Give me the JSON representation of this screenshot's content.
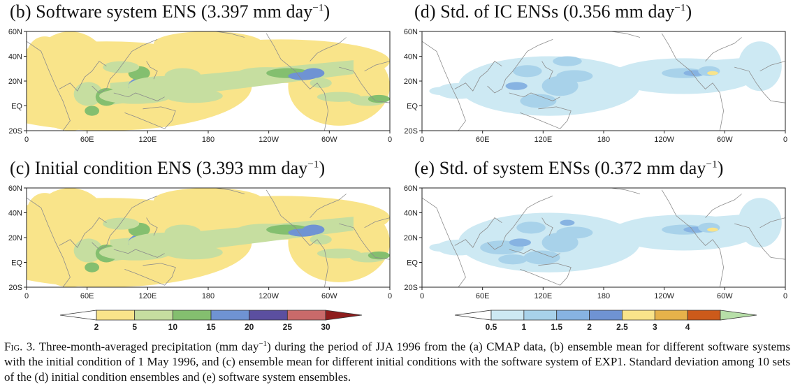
{
  "panels": [
    {
      "id": "b",
      "title_main": "(b) Software system ENS (3.397 mm day",
      "title_exp": "−1",
      "title_end": ")",
      "colormap": "precip",
      "blobs": [
        [
          0.03,
          0.7,
          0.07,
          0.06,
          1
        ],
        [
          0.1,
          0.62,
          0.05,
          0.28,
          1
        ],
        [
          0.16,
          0.58,
          0.06,
          0.22,
          1
        ],
        [
          0.17,
          0.63,
          0.04,
          0.12,
          2
        ],
        [
          0.22,
          0.66,
          0.03,
          0.09,
          3
        ],
        [
          0.18,
          0.8,
          0.02,
          0.05,
          3
        ],
        [
          0.32,
          0.55,
          0.04,
          0.09,
          4
        ],
        [
          0.33,
          0.58,
          0.02,
          0.04,
          5
        ],
        [
          0.31,
          0.42,
          0.03,
          0.07,
          3
        ],
        [
          0.26,
          0.36,
          0.05,
          0.06,
          2
        ],
        [
          0.38,
          0.55,
          0.1,
          0.1,
          2
        ],
        [
          0.43,
          0.45,
          0.05,
          0.08,
          2
        ],
        [
          0.3,
          0.65,
          0.1,
          0.08,
          2
        ],
        [
          0.46,
          0.65,
          0.08,
          0.07,
          2
        ],
        [
          0.22,
          0.25,
          0.04,
          0.05,
          1
        ],
        [
          0.66,
          0.42,
          0.08,
          0.06,
          2
        ],
        [
          0.72,
          0.42,
          0.06,
          0.05,
          3
        ],
        [
          0.76,
          0.45,
          0.04,
          0.04,
          4
        ],
        [
          0.79,
          0.42,
          0.03,
          0.05,
          4
        ],
        [
          0.81,
          0.52,
          0.03,
          0.05,
          2
        ],
        [
          0.86,
          0.66,
          0.06,
          0.05,
          2
        ],
        [
          0.94,
          0.7,
          0.05,
          0.05,
          2
        ],
        [
          0.97,
          0.68,
          0.03,
          0.04,
          3
        ]
      ],
      "band": [
        0.23,
        0.62,
        0.9,
        0.35
      ]
    },
    {
      "id": "d",
      "title_main": "(d) Std. of IC ENSs (0.356 mm day",
      "title_exp": "−1",
      "title_end": ")",
      "colormap": "std",
      "blobs": [
        [
          0.05,
          0.6,
          0.03,
          0.04,
          1
        ],
        [
          0.14,
          0.55,
          0.04,
          0.05,
          1
        ],
        [
          0.22,
          0.6,
          0.05,
          0.06,
          1
        ],
        [
          0.25,
          0.72,
          0.04,
          0.05,
          1
        ],
        [
          0.26,
          0.55,
          0.03,
          0.04,
          3
        ],
        [
          0.29,
          0.4,
          0.04,
          0.06,
          2
        ],
        [
          0.32,
          0.7,
          0.05,
          0.07,
          2
        ],
        [
          0.38,
          0.55,
          0.05,
          0.1,
          2
        ],
        [
          0.42,
          0.45,
          0.05,
          0.06,
          2
        ],
        [
          0.48,
          0.55,
          0.04,
          0.05,
          1
        ],
        [
          0.4,
          0.3,
          0.04,
          0.05,
          2
        ],
        [
          0.72,
          0.42,
          0.06,
          0.05,
          2
        ],
        [
          0.75,
          0.42,
          0.03,
          0.03,
          3
        ],
        [
          0.79,
          0.4,
          0.03,
          0.05,
          2
        ],
        [
          0.8,
          0.42,
          0.015,
          0.02,
          5
        ],
        [
          0.93,
          0.52,
          0.03,
          0.04,
          1
        ]
      ],
      "band": [
        0.22,
        0.55,
        0.98,
        0.3
      ]
    },
    {
      "id": "c",
      "title_main": "(c) Initial condition ENS (3.393 mm day",
      "title_exp": "−1",
      "title_end": ")",
      "colormap": "precip",
      "blobs": [
        [
          0.03,
          0.7,
          0.07,
          0.06,
          1
        ],
        [
          0.1,
          0.62,
          0.05,
          0.28,
          1
        ],
        [
          0.16,
          0.58,
          0.06,
          0.22,
          1
        ],
        [
          0.17,
          0.63,
          0.04,
          0.12,
          2
        ],
        [
          0.22,
          0.66,
          0.03,
          0.09,
          3
        ],
        [
          0.18,
          0.8,
          0.02,
          0.05,
          3
        ],
        [
          0.32,
          0.55,
          0.04,
          0.09,
          4
        ],
        [
          0.33,
          0.58,
          0.02,
          0.04,
          5
        ],
        [
          0.31,
          0.42,
          0.03,
          0.07,
          3
        ],
        [
          0.26,
          0.36,
          0.05,
          0.06,
          2
        ],
        [
          0.38,
          0.55,
          0.1,
          0.1,
          2
        ],
        [
          0.43,
          0.45,
          0.05,
          0.08,
          2
        ],
        [
          0.3,
          0.65,
          0.1,
          0.08,
          2
        ],
        [
          0.46,
          0.65,
          0.08,
          0.07,
          2
        ],
        [
          0.22,
          0.25,
          0.04,
          0.05,
          1
        ],
        [
          0.66,
          0.42,
          0.08,
          0.06,
          2
        ],
        [
          0.72,
          0.42,
          0.06,
          0.05,
          3
        ],
        [
          0.76,
          0.45,
          0.04,
          0.04,
          4
        ],
        [
          0.79,
          0.42,
          0.03,
          0.05,
          4
        ],
        [
          0.81,
          0.52,
          0.03,
          0.05,
          2
        ],
        [
          0.86,
          0.66,
          0.06,
          0.05,
          2
        ],
        [
          0.94,
          0.7,
          0.05,
          0.05,
          2
        ],
        [
          0.97,
          0.68,
          0.03,
          0.04,
          3
        ]
      ],
      "band": [
        0.23,
        0.62,
        0.9,
        0.35
      ]
    },
    {
      "id": "e",
      "title_main": "(e) Std. of system ENSs (0.372 mm day",
      "title_exp": "−1",
      "title_end": ")",
      "colormap": "std",
      "blobs": [
        [
          0.05,
          0.6,
          0.03,
          0.04,
          1
        ],
        [
          0.14,
          0.55,
          0.04,
          0.05,
          1
        ],
        [
          0.22,
          0.6,
          0.06,
          0.07,
          2
        ],
        [
          0.25,
          0.72,
          0.04,
          0.05,
          2
        ],
        [
          0.27,
          0.55,
          0.03,
          0.04,
          3
        ],
        [
          0.3,
          0.4,
          0.04,
          0.06,
          2
        ],
        [
          0.33,
          0.7,
          0.05,
          0.07,
          2
        ],
        [
          0.38,
          0.55,
          0.05,
          0.1,
          2
        ],
        [
          0.42,
          0.45,
          0.05,
          0.06,
          2
        ],
        [
          0.4,
          0.35,
          0.02,
          0.03,
          3
        ],
        [
          0.48,
          0.55,
          0.04,
          0.05,
          1
        ],
        [
          0.72,
          0.42,
          0.06,
          0.05,
          2
        ],
        [
          0.75,
          0.42,
          0.03,
          0.03,
          3
        ],
        [
          0.79,
          0.4,
          0.03,
          0.05,
          2
        ],
        [
          0.8,
          0.42,
          0.015,
          0.02,
          5
        ],
        [
          0.93,
          0.52,
          0.03,
          0.04,
          1
        ]
      ],
      "band": [
        0.22,
        0.55,
        0.98,
        0.3
      ]
    }
  ],
  "map_axes": {
    "lat_labels": [
      "60N",
      "40N",
      "20N",
      "EQ",
      "20S"
    ],
    "lon_labels": [
      "0",
      "60E",
      "120E",
      "180",
      "120W",
      "60W",
      "0"
    ]
  },
  "colorbar_precip": {
    "labels": [
      "2",
      "5",
      "10",
      "15",
      "20",
      "25",
      "30"
    ],
    "colors": [
      "#ffffff",
      "#f9e48a",
      "#c6dea0",
      "#84bf6f",
      "#6f93d3",
      "#5b4fa0",
      "#c96a6a",
      "#8e1d1d"
    ]
  },
  "colorbar_std": {
    "labels": [
      "0.5",
      "1",
      "1.5",
      "2",
      "2.5",
      "3",
      "4"
    ],
    "colors": [
      "#ffffff",
      "#cde9f3",
      "#a8d2ea",
      "#87b3e2",
      "#6f93d3",
      "#f9e48a",
      "#e6b24a",
      "#cc5a1a",
      "#b7dfa8"
    ]
  },
  "caption": {
    "fig_label": "Fig. 3.",
    "text_part1": " Three-month-averaged precipitation (mm day",
    "text_exp": "−1",
    "text_part2": ") during the period of JJA 1996 from the (a) CMAP data, (b) ensemble mean for different software systems with the initial condition of 1 May 1996, and (c) ensemble mean for different initial conditions with the software system of EXP1. Standard deviation among 10 sets of the (d) initial condition ensembles and (e) software system ensembles."
  }
}
